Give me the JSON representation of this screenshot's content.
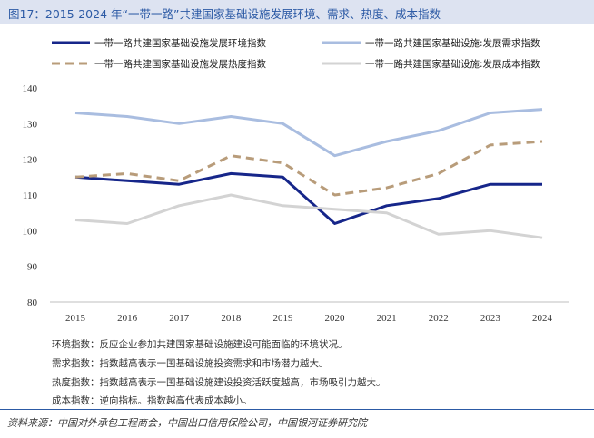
{
  "figure": {
    "title": "图17：2015-2024 年“一带一路”共建国家基础设施发展环境、需求、热度、成本指数"
  },
  "chart_data": {
    "type": "line",
    "x": [
      "2015",
      "2016",
      "2017",
      "2018",
      "2019",
      "2020",
      "2021",
      "2022",
      "2023",
      "2024"
    ],
    "ylim": [
      80,
      140
    ],
    "yticks": [
      "80",
      "90",
      "100",
      "110",
      "120",
      "130",
      "140"
    ],
    "grid": false,
    "legend_position": "top",
    "series": [
      {
        "name": "一带一路共建国家基础设施发展环境指数",
        "color": "#16268a",
        "dash": "solid",
        "values": [
          115,
          114,
          113,
          116,
          115,
          102,
          107,
          109,
          113,
          113
        ]
      },
      {
        "name": "一带一路共建国家基础设施:发展需求指数",
        "color": "#a9bde0",
        "dash": "solid",
        "values": [
          133,
          132,
          130,
          132,
          130,
          121,
          125,
          128,
          133,
          134
        ]
      },
      {
        "name": "一带一路共建国家基础设施发展热度指数",
        "color": "#b89c7a",
        "dash": "dashed",
        "values": [
          115,
          116,
          114,
          121,
          119,
          110,
          112,
          116,
          124,
          125
        ]
      },
      {
        "name": "一带一路共建国家基础设施:发展成本指数",
        "color": "#d3d3d3",
        "dash": "solid",
        "values": [
          103,
          102,
          107,
          110,
          107,
          106,
          105,
          99,
          100,
          98
        ]
      }
    ]
  },
  "notes": [
    "环境指数：反应企业参加共建国家基础设施建设可能面临的环境状况。",
    "需求指数：指数越高表示一国基础设施投资需求和市场潜力越大。",
    "热度指数：指数越高表示一国基础设施建设投资活跃度越高，市场吸引力越大。",
    "成本指数：逆向指标。指数越高代表成本越小。"
  ],
  "source": "资料来源：中国对外承包工程商会，中国出口信用保险公司，中国银河证券研究院"
}
